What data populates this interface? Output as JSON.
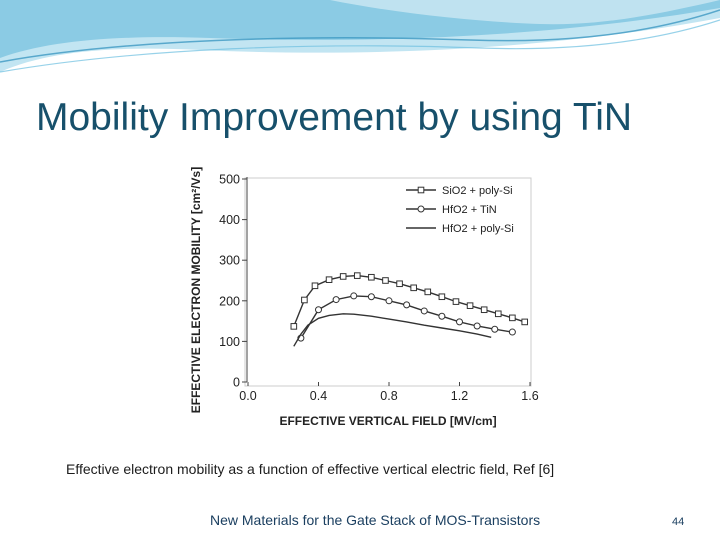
{
  "slide": {
    "title": "Mobility Improvement by using TiN",
    "caption": "Effective electron mobility as a function of effective vertical electric field, Ref [6]",
    "footer": "New Materials for the Gate Stack of MOS-Transistors",
    "page_number": "44"
  },
  "colors": {
    "title": "#17506b",
    "header_band": "#8fd0e8",
    "plot_frame": "#cccccc",
    "series": "#333333"
  },
  "chart_data": {
    "type": "line",
    "xlabel": "EFFECTIVE VERTICAL FIELD [MV/cm]",
    "ylabel": "EFFECTIVE ELECTRON MOBILITY [cm²/Vs]",
    "xlim": [
      0.0,
      1.6
    ],
    "ylim": [
      0,
      500
    ],
    "x_ticks": [
      "0.0",
      "0.4",
      "0.8",
      "1.2",
      "1.6"
    ],
    "y_ticks": [
      "0",
      "100",
      "200",
      "300",
      "400",
      "500"
    ],
    "grid": false,
    "legend_position": "top-right",
    "series": [
      {
        "name": "SiO2 + poly-Si",
        "marker": "square",
        "x": [
          0.26,
          0.32,
          0.38,
          0.46,
          0.54,
          0.62,
          0.7,
          0.78,
          0.86,
          0.94,
          1.02,
          1.1,
          1.18,
          1.26,
          1.34,
          1.42,
          1.5,
          1.57
        ],
        "y": [
          137,
          202,
          237,
          252,
          260,
          262,
          258,
          250,
          242,
          232,
          222,
          210,
          198,
          188,
          178,
          168,
          158,
          148
        ]
      },
      {
        "name": "HfO2 + TiN",
        "marker": "circle",
        "x": [
          0.3,
          0.4,
          0.5,
          0.6,
          0.7,
          0.8,
          0.9,
          1.0,
          1.1,
          1.2,
          1.3,
          1.4,
          1.5
        ],
        "y": [
          108,
          178,
          203,
          212,
          210,
          200,
          190,
          175,
          162,
          148,
          138,
          130,
          123
        ]
      },
      {
        "name": "HfO2 + poly-Si",
        "marker": "none",
        "x": [
          0.26,
          0.3,
          0.34,
          0.4,
          0.46,
          0.54,
          0.6,
          0.7,
          0.8,
          0.9,
          1.0,
          1.1,
          1.2,
          1.3,
          1.38
        ],
        "y": [
          88,
          118,
          140,
          157,
          164,
          168,
          167,
          162,
          155,
          148,
          140,
          133,
          126,
          118,
          110
        ]
      }
    ]
  }
}
